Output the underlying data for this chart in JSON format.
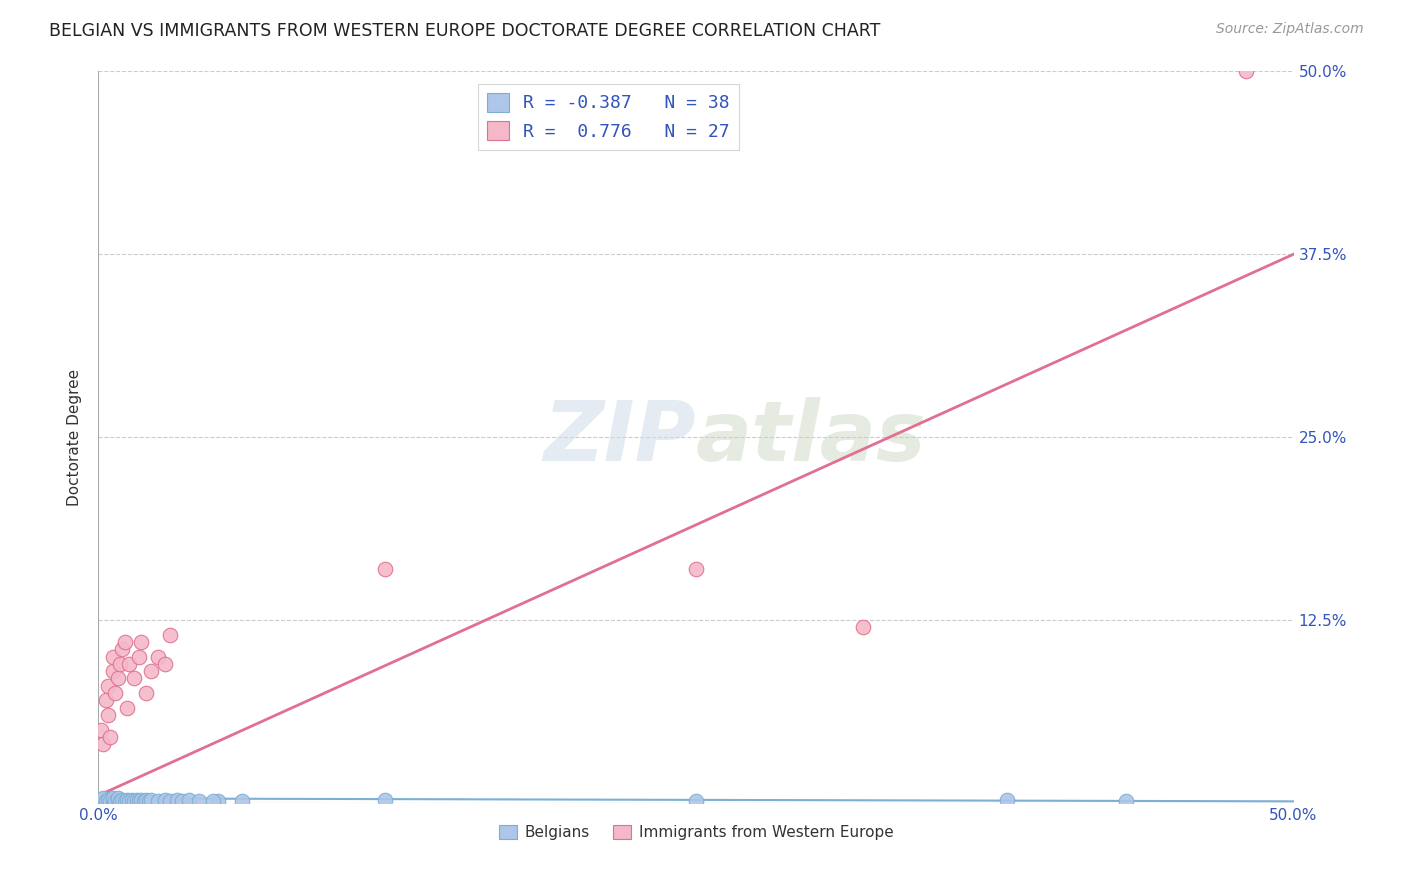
{
  "title": "BELGIAN VS IMMIGRANTS FROM WESTERN EUROPE DOCTORATE DEGREE CORRELATION CHART",
  "source": "Source: ZipAtlas.com",
  "ylabel": "Doctorate Degree",
  "xlim": [
    0.0,
    0.5
  ],
  "ylim": [
    0.0,
    0.5
  ],
  "belgian_color": "#aec6e8",
  "belgian_edge_color": "#7bafd4",
  "immigrant_color": "#f4b8c8",
  "immigrant_edge_color": "#e07090",
  "belgian_R": -0.387,
  "belgian_N": 38,
  "immigrant_R": 0.776,
  "immigrant_N": 27,
  "legend_text_color": "#3355bb",
  "belgian_line_color": "#7bafd4",
  "immigrant_line_color": "#e07090",
  "bel_x": [
    0.001,
    0.002,
    0.003,
    0.004,
    0.005,
    0.006,
    0.006,
    0.007,
    0.008,
    0.008,
    0.009,
    0.01,
    0.011,
    0.012,
    0.013,
    0.014,
    0.015,
    0.016,
    0.017,
    0.018,
    0.019,
    0.02,
    0.021,
    0.022,
    0.025,
    0.028,
    0.03,
    0.033,
    0.035,
    0.038,
    0.042,
    0.05,
    0.06,
    0.12,
    0.25,
    0.38,
    0.43,
    0.048
  ],
  "bel_y": [
    0.002,
    0.003,
    0.001,
    0.002,
    0.001,
    0.002,
    0.003,
    0.001,
    0.002,
    0.003,
    0.001,
    0.002,
    0.001,
    0.002,
    0.001,
    0.002,
    0.001,
    0.002,
    0.001,
    0.002,
    0.001,
    0.002,
    0.001,
    0.002,
    0.001,
    0.002,
    0.001,
    0.002,
    0.001,
    0.002,
    0.001,
    0.001,
    0.001,
    0.002,
    0.001,
    0.002,
    0.001,
    0.001
  ],
  "imm_x": [
    0.001,
    0.002,
    0.003,
    0.004,
    0.004,
    0.005,
    0.006,
    0.006,
    0.007,
    0.008,
    0.009,
    0.01,
    0.011,
    0.012,
    0.013,
    0.015,
    0.017,
    0.018,
    0.02,
    0.022,
    0.025,
    0.028,
    0.03,
    0.12,
    0.25,
    0.32,
    0.48
  ],
  "imm_y": [
    0.05,
    0.04,
    0.07,
    0.06,
    0.08,
    0.045,
    0.09,
    0.1,
    0.075,
    0.085,
    0.095,
    0.105,
    0.11,
    0.065,
    0.095,
    0.085,
    0.1,
    0.11,
    0.075,
    0.09,
    0.1,
    0.095,
    0.115,
    0.16,
    0.16,
    0.12,
    0.5
  ],
  "bel_line_x": [
    0.0,
    0.5
  ],
  "bel_line_y": [
    0.003,
    0.001
  ],
  "imm_line_x": [
    0.0,
    0.5
  ],
  "imm_line_y": [
    0.005,
    0.375
  ]
}
